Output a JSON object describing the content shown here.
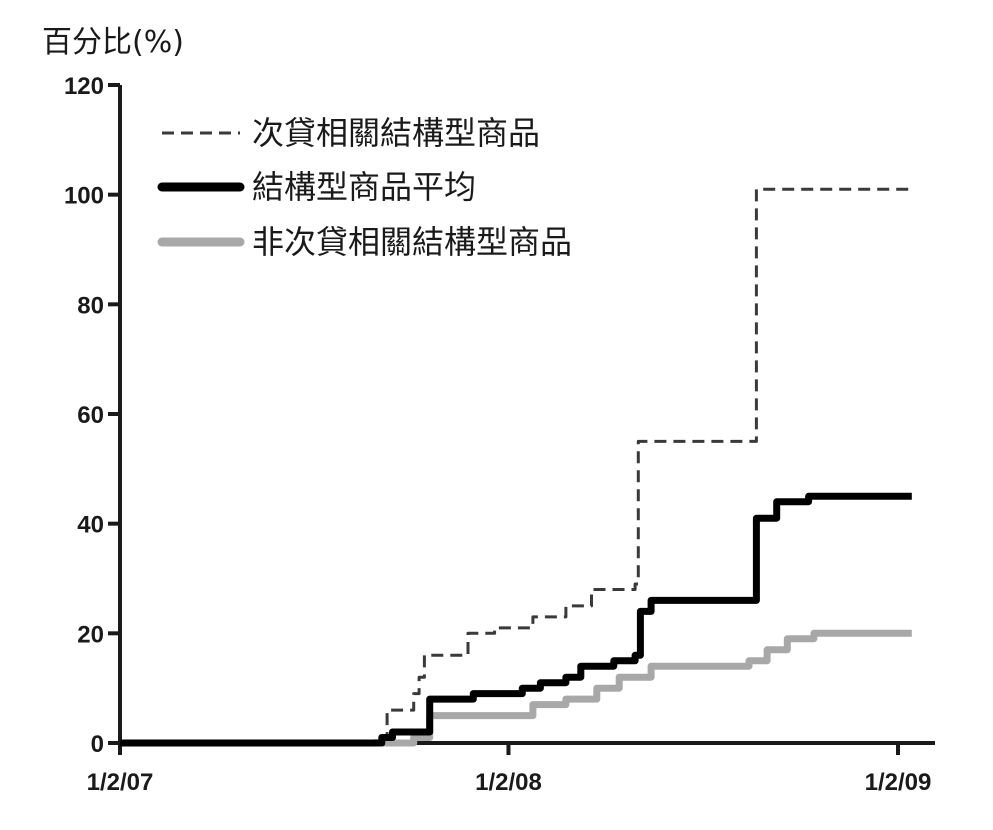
{
  "chart_data": {
    "type": "line",
    "title": "",
    "ylabel": "百分比(%)",
    "xlabel": "",
    "ylim": [
      0,
      120
    ],
    "yticks": [
      0,
      20,
      40,
      60,
      80,
      100,
      120
    ],
    "xticks": [
      "1/2/07",
      "1/2/08",
      "1/2/09"
    ],
    "legend_position": "top-left",
    "step": true,
    "series": [
      {
        "name": "次貸相關結構型商品",
        "style": "dashed",
        "color": "#3a3a3a",
        "points": [
          [
            "2007-01-02",
            0
          ],
          [
            "2007-08-25",
            0
          ],
          [
            "2007-08-30",
            1
          ],
          [
            "2007-09-10",
            6
          ],
          [
            "2007-10-05",
            9
          ],
          [
            "2007-10-10",
            12
          ],
          [
            "2007-10-15",
            16
          ],
          [
            "2007-11-20",
            16
          ],
          [
            "2007-11-25",
            20
          ],
          [
            "2007-12-20",
            21
          ],
          [
            "2008-01-15",
            21
          ],
          [
            "2008-01-25",
            23
          ],
          [
            "2008-02-25",
            25
          ],
          [
            "2008-03-20",
            28
          ],
          [
            "2008-04-30",
            29
          ],
          [
            "2008-05-03",
            55
          ],
          [
            "2008-08-20",
            55
          ],
          [
            "2008-08-22",
            101
          ],
          [
            "2009-01-15",
            101
          ]
        ]
      },
      {
        "name": "結構型商品平均",
        "style": "solid",
        "color": "#000000",
        "points": [
          [
            "2007-01-02",
            0
          ],
          [
            "2007-08-25",
            0
          ],
          [
            "2007-09-05",
            1
          ],
          [
            "2007-09-15",
            2
          ],
          [
            "2007-10-05",
            2
          ],
          [
            "2007-10-20",
            8
          ],
          [
            "2007-11-30",
            9
          ],
          [
            "2008-01-15",
            10
          ],
          [
            "2008-02-01",
            11
          ],
          [
            "2008-02-25",
            12
          ],
          [
            "2008-03-10",
            14
          ],
          [
            "2008-04-10",
            15
          ],
          [
            "2008-04-30",
            16
          ],
          [
            "2008-05-05",
            24
          ],
          [
            "2008-05-15",
            26
          ],
          [
            "2008-08-18",
            26
          ],
          [
            "2008-08-22",
            41
          ],
          [
            "2008-09-10",
            44
          ],
          [
            "2008-10-10",
            45
          ],
          [
            "2009-01-15",
            45
          ]
        ]
      },
      {
        "name": "非次貸相關結構型商品",
        "style": "solid",
        "color": "#a8a8a8",
        "points": [
          [
            "2007-01-02",
            0
          ],
          [
            "2007-09-10",
            0
          ],
          [
            "2007-10-05",
            1
          ],
          [
            "2007-10-20",
            5
          ],
          [
            "2007-12-20",
            5
          ],
          [
            "2008-01-05",
            5
          ],
          [
            "2008-01-25",
            7
          ],
          [
            "2008-02-25",
            8
          ],
          [
            "2008-03-25",
            10
          ],
          [
            "2008-04-15",
            12
          ],
          [
            "2008-05-15",
            14
          ],
          [
            "2008-08-15",
            15
          ],
          [
            "2008-09-01",
            17
          ],
          [
            "2008-09-20",
            19
          ],
          [
            "2008-10-15",
            20
          ],
          [
            "2009-01-15",
            20
          ]
        ]
      }
    ]
  }
}
